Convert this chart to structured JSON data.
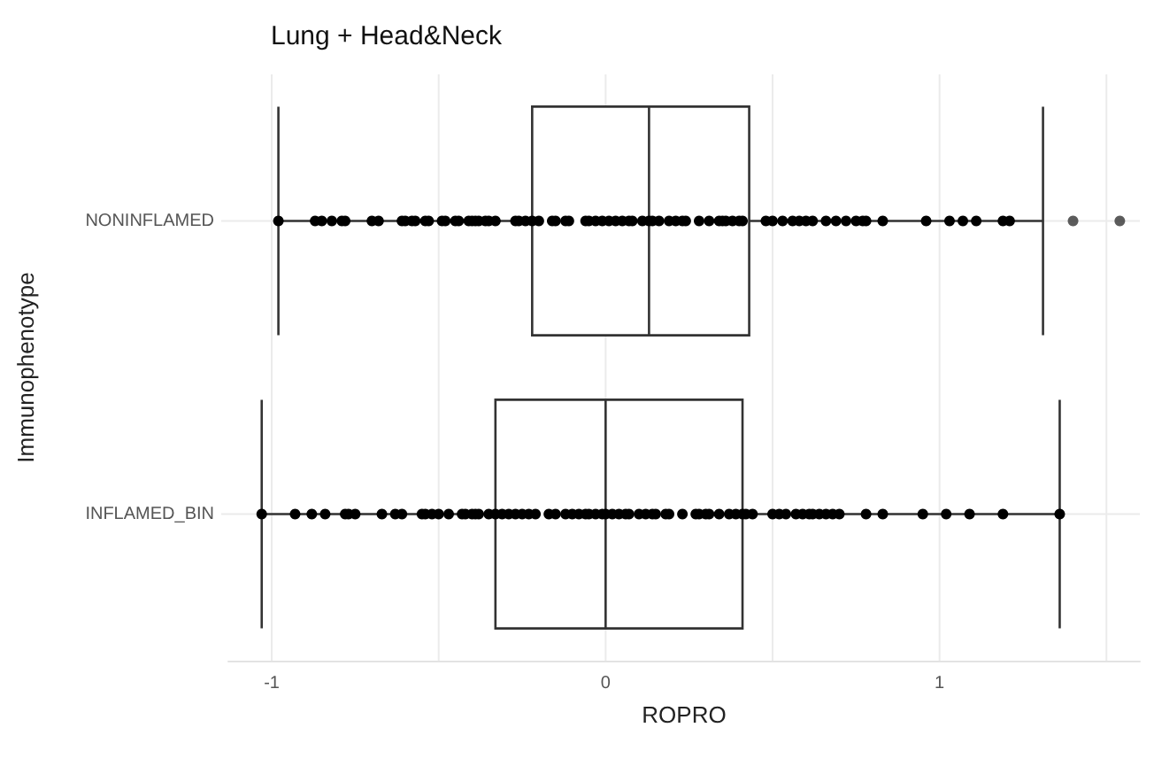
{
  "chart_data": {
    "type": "box",
    "orientation": "horizontal",
    "title": "Lung + Head&Neck",
    "xlabel": "ROPRO",
    "ylabel": "Immunophenotype",
    "categories": [
      "NONINFLAMED",
      "INFLAMED_BIN"
    ],
    "boxes": [
      {
        "low": -0.98,
        "q1": -0.22,
        "median": 0.13,
        "q3": 0.43,
        "high": 1.31,
        "outliers": [
          1.4,
          1.54
        ]
      },
      {
        "low": -1.03,
        "q1": -0.33,
        "median": 0.0,
        "q3": 0.41,
        "high": 1.36
      }
    ],
    "color": "#333333",
    "series": [
      {
        "type": "scatter",
        "color": "#000000",
        "x": [
          "NONINFLAMED",
          "NONINFLAMED",
          "NONINFLAMED",
          "NONINFLAMED",
          "NONINFLAMED",
          "NONINFLAMED",
          "NONINFLAMED",
          "NONINFLAMED",
          "NONINFLAMED",
          "NONINFLAMED",
          "NONINFLAMED",
          "NONINFLAMED",
          "NONINFLAMED",
          "NONINFLAMED",
          "NONINFLAMED",
          "NONINFLAMED",
          "NONINFLAMED",
          "NONINFLAMED",
          "NONINFLAMED",
          "NONINFLAMED",
          "NONINFLAMED",
          "NONINFLAMED",
          "NONINFLAMED",
          "NONINFLAMED",
          "NONINFLAMED",
          "NONINFLAMED",
          "NONINFLAMED",
          "NONINFLAMED",
          "NONINFLAMED",
          "NONINFLAMED",
          "NONINFLAMED",
          "NONINFLAMED",
          "NONINFLAMED",
          "NONINFLAMED",
          "NONINFLAMED",
          "NONINFLAMED",
          "NONINFLAMED",
          "NONINFLAMED",
          "NONINFLAMED",
          "NONINFLAMED",
          "NONINFLAMED",
          "NONINFLAMED",
          "NONINFLAMED",
          "NONINFLAMED",
          "NONINFLAMED",
          "NONINFLAMED",
          "NONINFLAMED",
          "NONINFLAMED",
          "NONINFLAMED",
          "NONINFLAMED",
          "NONINFLAMED",
          "NONINFLAMED",
          "NONINFLAMED",
          "NONINFLAMED",
          "NONINFLAMED",
          "NONINFLAMED",
          "NONINFLAMED",
          "NONINFLAMED",
          "NONINFLAMED",
          "NONINFLAMED",
          "NONINFLAMED",
          "NONINFLAMED",
          "NONINFLAMED",
          "NONINFLAMED",
          "NONINFLAMED",
          "NONINFLAMED",
          "NONINFLAMED",
          "NONINFLAMED",
          "NONINFLAMED",
          "NONINFLAMED",
          "NONINFLAMED",
          "NONINFLAMED",
          "NONINFLAMED",
          "NONINFLAMED",
          "NONINFLAMED",
          "NONINFLAMED",
          "NONINFLAMED",
          "NONINFLAMED",
          "NONINFLAMED"
        ],
        "values": [
          -0.98,
          -0.87,
          -0.85,
          -0.82,
          -0.79,
          -0.78,
          -0.7,
          -0.68,
          -0.61,
          -0.6,
          -0.58,
          -0.57,
          -0.54,
          -0.53,
          -0.49,
          -0.48,
          -0.45,
          -0.44,
          -0.41,
          -0.4,
          -0.39,
          -0.38,
          -0.36,
          -0.35,
          -0.33,
          -0.27,
          -0.26,
          -0.24,
          -0.22,
          -0.2,
          -0.16,
          -0.15,
          -0.12,
          -0.11,
          -0.06,
          -0.05,
          -0.03,
          -0.01,
          0.01,
          0.03,
          0.05,
          0.07,
          0.08,
          0.11,
          0.13,
          0.14,
          0.16,
          0.19,
          0.21,
          0.23,
          0.24,
          0.28,
          0.31,
          0.34,
          0.35,
          0.36,
          0.38,
          0.4,
          0.41,
          0.48,
          0.5,
          0.53,
          0.56,
          0.58,
          0.6,
          0.62,
          0.66,
          0.69,
          0.72,
          0.75,
          0.77,
          0.78,
          0.83,
          0.96,
          1.03,
          1.07,
          1.11,
          1.19,
          1.21
        ]
      },
      {
        "type": "scatter",
        "color": "#000000",
        "x": [
          "INFLAMED_BIN",
          "INFLAMED_BIN",
          "INFLAMED_BIN",
          "INFLAMED_BIN",
          "INFLAMED_BIN",
          "INFLAMED_BIN",
          "INFLAMED_BIN",
          "INFLAMED_BIN",
          "INFLAMED_BIN",
          "INFLAMED_BIN",
          "INFLAMED_BIN",
          "INFLAMED_BIN",
          "INFLAMED_BIN",
          "INFLAMED_BIN",
          "INFLAMED_BIN",
          "INFLAMED_BIN",
          "INFLAMED_BIN",
          "INFLAMED_BIN",
          "INFLAMED_BIN",
          "INFLAMED_BIN",
          "INFLAMED_BIN",
          "INFLAMED_BIN",
          "INFLAMED_BIN",
          "INFLAMED_BIN",
          "INFLAMED_BIN",
          "INFLAMED_BIN",
          "INFLAMED_BIN",
          "INFLAMED_BIN",
          "INFLAMED_BIN",
          "INFLAMED_BIN",
          "INFLAMED_BIN",
          "INFLAMED_BIN",
          "INFLAMED_BIN",
          "INFLAMED_BIN",
          "INFLAMED_BIN",
          "INFLAMED_BIN",
          "INFLAMED_BIN",
          "INFLAMED_BIN",
          "INFLAMED_BIN",
          "INFLAMED_BIN",
          "INFLAMED_BIN",
          "INFLAMED_BIN",
          "INFLAMED_BIN",
          "INFLAMED_BIN",
          "INFLAMED_BIN",
          "INFLAMED_BIN",
          "INFLAMED_BIN",
          "INFLAMED_BIN",
          "INFLAMED_BIN",
          "INFLAMED_BIN",
          "INFLAMED_BIN",
          "INFLAMED_BIN",
          "INFLAMED_BIN",
          "INFLAMED_BIN",
          "INFLAMED_BIN",
          "INFLAMED_BIN",
          "INFLAMED_BIN",
          "INFLAMED_BIN",
          "INFLAMED_BIN",
          "INFLAMED_BIN",
          "INFLAMED_BIN",
          "INFLAMED_BIN",
          "INFLAMED_BIN",
          "INFLAMED_BIN",
          "INFLAMED_BIN",
          "INFLAMED_BIN",
          "INFLAMED_BIN",
          "INFLAMED_BIN",
          "INFLAMED_BIN",
          "INFLAMED_BIN",
          "INFLAMED_BIN",
          "INFLAMED_BIN",
          "INFLAMED_BIN",
          "INFLAMED_BIN",
          "INFLAMED_BIN",
          "INFLAMED_BIN",
          "INFLAMED_BIN"
        ],
        "values": [
          -1.03,
          -0.93,
          -0.88,
          -0.84,
          -0.78,
          -0.77,
          -0.75,
          -0.67,
          -0.63,
          -0.61,
          -0.55,
          -0.54,
          -0.52,
          -0.5,
          -0.47,
          -0.43,
          -0.42,
          -0.4,
          -0.39,
          -0.38,
          -0.35,
          -0.33,
          -0.31,
          -0.29,
          -0.27,
          -0.25,
          -0.23,
          -0.21,
          -0.17,
          -0.15,
          -0.12,
          -0.1,
          -0.08,
          -0.06,
          -0.05,
          -0.03,
          -0.01,
          0.0,
          0.02,
          0.04,
          0.06,
          0.07,
          0.1,
          0.12,
          0.14,
          0.15,
          0.18,
          0.19,
          0.23,
          0.27,
          0.28,
          0.31,
          0.34,
          0.37,
          0.39,
          0.41,
          0.42,
          0.44,
          0.5,
          0.52,
          0.54,
          0.57,
          0.59,
          0.61,
          0.62,
          0.64,
          0.66,
          0.68,
          0.7,
          0.78,
          0.83,
          0.95,
          1.02,
          1.09,
          1.19,
          1.36,
          0.3
        ]
      }
    ],
    "xlim": [
      -1.13,
      1.6
    ],
    "xticks": [
      -1,
      {
        "value": -0.5,
        "label": null
      },
      0,
      {
        "value": 0.5,
        "label": null
      },
      1,
      {
        "value": 1.5,
        "label": null
      }
    ],
    "grid": true,
    "marker": "circle"
  }
}
